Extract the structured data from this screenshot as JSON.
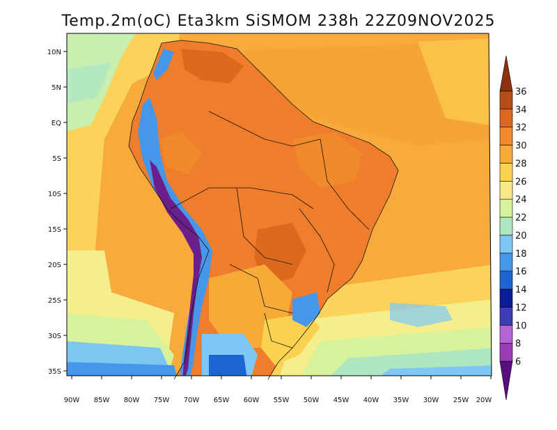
{
  "title": "Temp.2m(oC) Eta3km SiSMOM 238h 22Z09NOV2025",
  "axes": {
    "lat_labels": [
      "10N",
      "5N",
      "EQ",
      "5S",
      "10S",
      "15S",
      "20S",
      "25S",
      "30S",
      "35S"
    ],
    "lon_labels": [
      "90W",
      "85W",
      "80W",
      "75W",
      "70W",
      "65W",
      "60W",
      "55W",
      "50W",
      "45W",
      "40W",
      "35W",
      "30W",
      "25W",
      "20W"
    ]
  },
  "colorbar": {
    "labels": [
      "6",
      "8",
      "10",
      "12",
      "14",
      "16",
      "18",
      "20",
      "22",
      "24",
      "26",
      "28",
      "30",
      "32",
      "34",
      "36"
    ],
    "colors": [
      "#5a0f7e",
      "#9b3bb5",
      "#b464d4",
      "#3c3cb4",
      "#0a1e96",
      "#1e64d2",
      "#4696ea",
      "#7fc8f5",
      "#aee6bf",
      "#d6f29a",
      "#fae888",
      "#fad250",
      "#f6aa38",
      "#f08a2a",
      "#dc6a1e",
      "#b44e16",
      "#8c3210"
    ]
  },
  "map_colors": {
    "ocean_warm": "#f7ab3c",
    "ocean_mid": "#fbd35a",
    "ocean_cool": "#f5ee8c",
    "ocean_cold": "#b4e8be",
    "ocean_coldest": "#7cc6f2",
    "land_hot": "#ee7e2c",
    "land_hotter": "#dc6a1e",
    "andes_cold": "#5a6ad8",
    "andes_coldest": "#6a1f8a"
  }
}
